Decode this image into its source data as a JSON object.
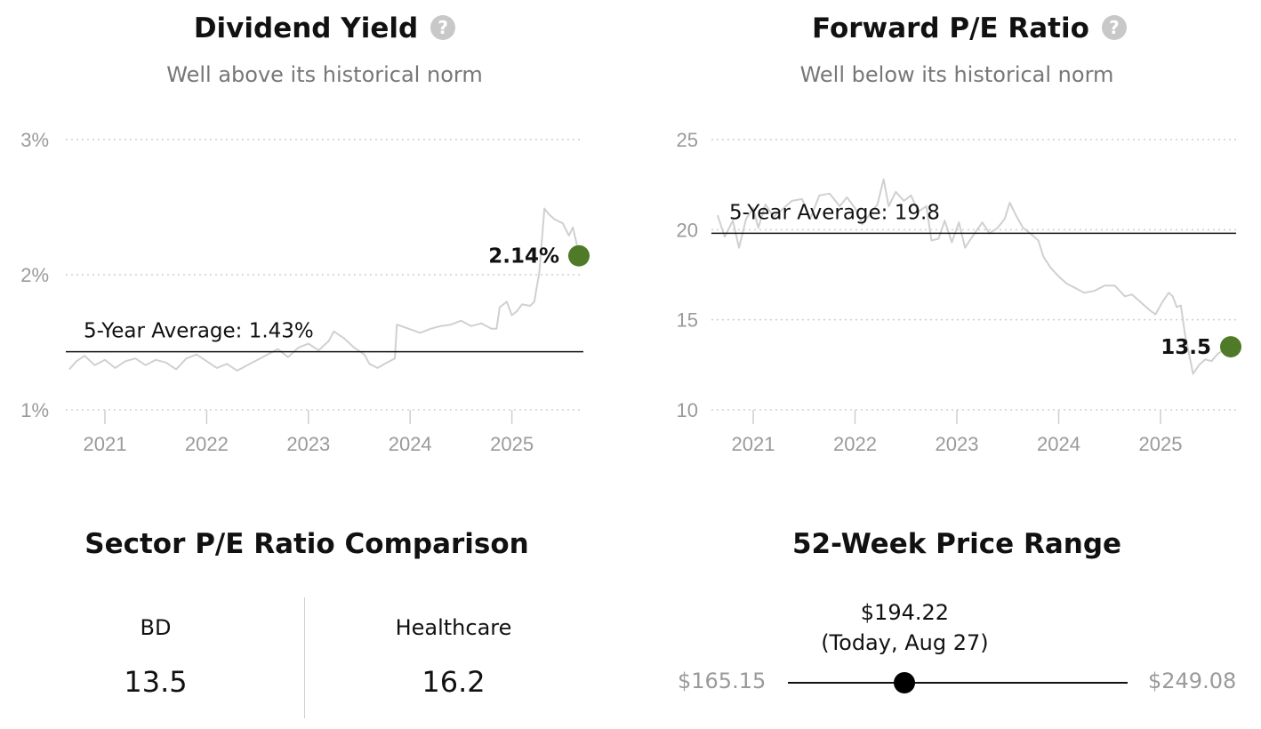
{
  "dividend_yield": {
    "title": "Dividend Yield",
    "subtitle": "Well above its historical norm",
    "help_icon": "question-circle-icon"
  },
  "forward_pe": {
    "title": "Forward P/E Ratio",
    "subtitle": "Well below its historical norm",
    "help_icon": "question-circle-icon"
  },
  "chart_data": [
    {
      "type": "line",
      "x_unit": "year",
      "x_ticks": [
        "2021",
        "2022",
        "2023",
        "2024",
        "2025"
      ],
      "y_tick_labels": [
        "1%",
        "2%",
        "3%"
      ],
      "y_ticks": [
        1,
        2,
        3
      ],
      "ylim": [
        1,
        3
      ],
      "xlim": [
        2020.65,
        2025.7
      ],
      "grid": "horizontal dotted",
      "series_color": "#d0d0d0",
      "points": [
        [
          2020.65,
          1.3
        ],
        [
          2020.72,
          1.36
        ],
        [
          2020.8,
          1.4
        ],
        [
          2020.9,
          1.33
        ],
        [
          2021.0,
          1.37
        ],
        [
          2021.1,
          1.31
        ],
        [
          2021.2,
          1.36
        ],
        [
          2021.3,
          1.38
        ],
        [
          2021.4,
          1.33
        ],
        [
          2021.5,
          1.37
        ],
        [
          2021.6,
          1.35
        ],
        [
          2021.7,
          1.3
        ],
        [
          2021.8,
          1.38
        ],
        [
          2021.9,
          1.41
        ],
        [
          2022.0,
          1.36
        ],
        [
          2022.1,
          1.31
        ],
        [
          2022.2,
          1.34
        ],
        [
          2022.3,
          1.29
        ],
        [
          2022.4,
          1.33
        ],
        [
          2022.5,
          1.37
        ],
        [
          2022.6,
          1.41
        ],
        [
          2022.7,
          1.45
        ],
        [
          2022.8,
          1.39
        ],
        [
          2022.9,
          1.46
        ],
        [
          2023.0,
          1.49
        ],
        [
          2023.1,
          1.44
        ],
        [
          2023.2,
          1.51
        ],
        [
          2023.25,
          1.58
        ],
        [
          2023.35,
          1.53
        ],
        [
          2023.45,
          1.46
        ],
        [
          2023.55,
          1.41
        ],
        [
          2023.6,
          1.34
        ],
        [
          2023.68,
          1.31
        ],
        [
          2023.75,
          1.34
        ],
        [
          2023.85,
          1.38
        ],
        [
          2023.87,
          1.63
        ],
        [
          2023.95,
          1.61
        ],
        [
          2024.1,
          1.57
        ],
        [
          2024.2,
          1.6
        ],
        [
          2024.3,
          1.62
        ],
        [
          2024.4,
          1.63
        ],
        [
          2024.5,
          1.66
        ],
        [
          2024.6,
          1.62
        ],
        [
          2024.7,
          1.64
        ],
        [
          2024.8,
          1.6
        ],
        [
          2024.85,
          1.6
        ],
        [
          2024.88,
          1.76
        ],
        [
          2024.95,
          1.8
        ],
        [
          2025.0,
          1.7
        ],
        [
          2025.05,
          1.73
        ],
        [
          2025.1,
          1.78
        ],
        [
          2025.18,
          1.77
        ],
        [
          2025.22,
          1.8
        ],
        [
          2025.27,
          2.02
        ],
        [
          2025.32,
          2.49
        ],
        [
          2025.36,
          2.45
        ],
        [
          2025.42,
          2.41
        ],
        [
          2025.5,
          2.38
        ],
        [
          2025.56,
          2.29
        ],
        [
          2025.6,
          2.35
        ],
        [
          2025.64,
          2.22
        ]
      ],
      "average": 1.43,
      "average_label": "5-Year Average: 1.43%",
      "current": 2.14,
      "current_label": "2.14%",
      "current_color": "#4f7a28"
    },
    {
      "type": "line",
      "x_unit": "year",
      "x_ticks": [
        "2021",
        "2022",
        "2023",
        "2024",
        "2025"
      ],
      "y_tick_labels": [
        "10",
        "15",
        "20",
        "25"
      ],
      "y_ticks": [
        10,
        15,
        20,
        25
      ],
      "ylim": [
        10,
        25
      ],
      "xlim": [
        2020.65,
        2025.7
      ],
      "grid": "horizontal dotted",
      "series_color": "#d0d0d0",
      "points": [
        [
          2020.65,
          20.8
        ],
        [
          2020.72,
          19.6
        ],
        [
          2020.8,
          20.5
        ],
        [
          2020.86,
          19.0
        ],
        [
          2020.93,
          20.6
        ],
        [
          2021.0,
          21.2
        ],
        [
          2021.05,
          20.1
        ],
        [
          2021.12,
          21.4
        ],
        [
          2021.2,
          20.7
        ],
        [
          2021.28,
          21.1
        ],
        [
          2021.38,
          21.6
        ],
        [
          2021.48,
          21.7
        ],
        [
          2021.56,
          20.6
        ],
        [
          2021.65,
          21.9
        ],
        [
          2021.75,
          22.0
        ],
        [
          2021.85,
          21.3
        ],
        [
          2021.92,
          21.8
        ],
        [
          2022.0,
          21.2
        ],
        [
          2022.07,
          20.3
        ],
        [
          2022.15,
          20.9
        ],
        [
          2022.22,
          21.4
        ],
        [
          2022.28,
          22.8
        ],
        [
          2022.33,
          21.3
        ],
        [
          2022.4,
          22.1
        ],
        [
          2022.48,
          21.6
        ],
        [
          2022.55,
          21.9
        ],
        [
          2022.62,
          21.0
        ],
        [
          2022.7,
          21.3
        ],
        [
          2022.75,
          19.4
        ],
        [
          2022.82,
          19.5
        ],
        [
          2022.88,
          20.5
        ],
        [
          2022.95,
          19.3
        ],
        [
          2023.02,
          20.4
        ],
        [
          2023.08,
          19.0
        ],
        [
          2023.15,
          19.6
        ],
        [
          2023.25,
          20.4
        ],
        [
          2023.32,
          19.8
        ],
        [
          2023.4,
          20.1
        ],
        [
          2023.47,
          20.6
        ],
        [
          2023.52,
          21.5
        ],
        [
          2023.58,
          20.8
        ],
        [
          2023.65,
          20.1
        ],
        [
          2023.72,
          19.8
        ],
        [
          2023.8,
          19.4
        ],
        [
          2023.85,
          18.5
        ],
        [
          2023.92,
          17.9
        ],
        [
          2024.0,
          17.4
        ],
        [
          2024.08,
          17.0
        ],
        [
          2024.15,
          16.8
        ],
        [
          2024.25,
          16.5
        ],
        [
          2024.35,
          16.6
        ],
        [
          2024.45,
          16.9
        ],
        [
          2024.55,
          16.9
        ],
        [
          2024.65,
          16.3
        ],
        [
          2024.72,
          16.4
        ],
        [
          2024.8,
          16.0
        ],
        [
          2024.86,
          15.7
        ],
        [
          2024.9,
          15.5
        ],
        [
          2024.95,
          15.3
        ],
        [
          2025.02,
          16.0
        ],
        [
          2025.08,
          16.5
        ],
        [
          2025.12,
          16.3
        ],
        [
          2025.16,
          15.7
        ],
        [
          2025.2,
          15.8
        ],
        [
          2025.24,
          14.2
        ],
        [
          2025.28,
          13.1
        ],
        [
          2025.32,
          12.0
        ],
        [
          2025.38,
          12.5
        ],
        [
          2025.44,
          12.8
        ],
        [
          2025.5,
          12.7
        ],
        [
          2025.56,
          13.1
        ],
        [
          2025.61,
          13.3
        ]
      ],
      "average": 19.8,
      "average_label": "5-Year Average: 19.8",
      "current": 13.5,
      "current_label": "13.5",
      "current_color": "#4f7a28"
    }
  ],
  "sector_pe": {
    "title": "Sector P/E Ratio Comparison",
    "left_label": "BD",
    "left_value": "13.5",
    "right_label": "Healthcare",
    "right_value": "16.2"
  },
  "price_range": {
    "title": "52-Week Price Range",
    "low": "$165.15",
    "high": "$249.08",
    "current": "$194.22",
    "current_note": "(Today, Aug 27)",
    "position_fraction": 0.344
  }
}
